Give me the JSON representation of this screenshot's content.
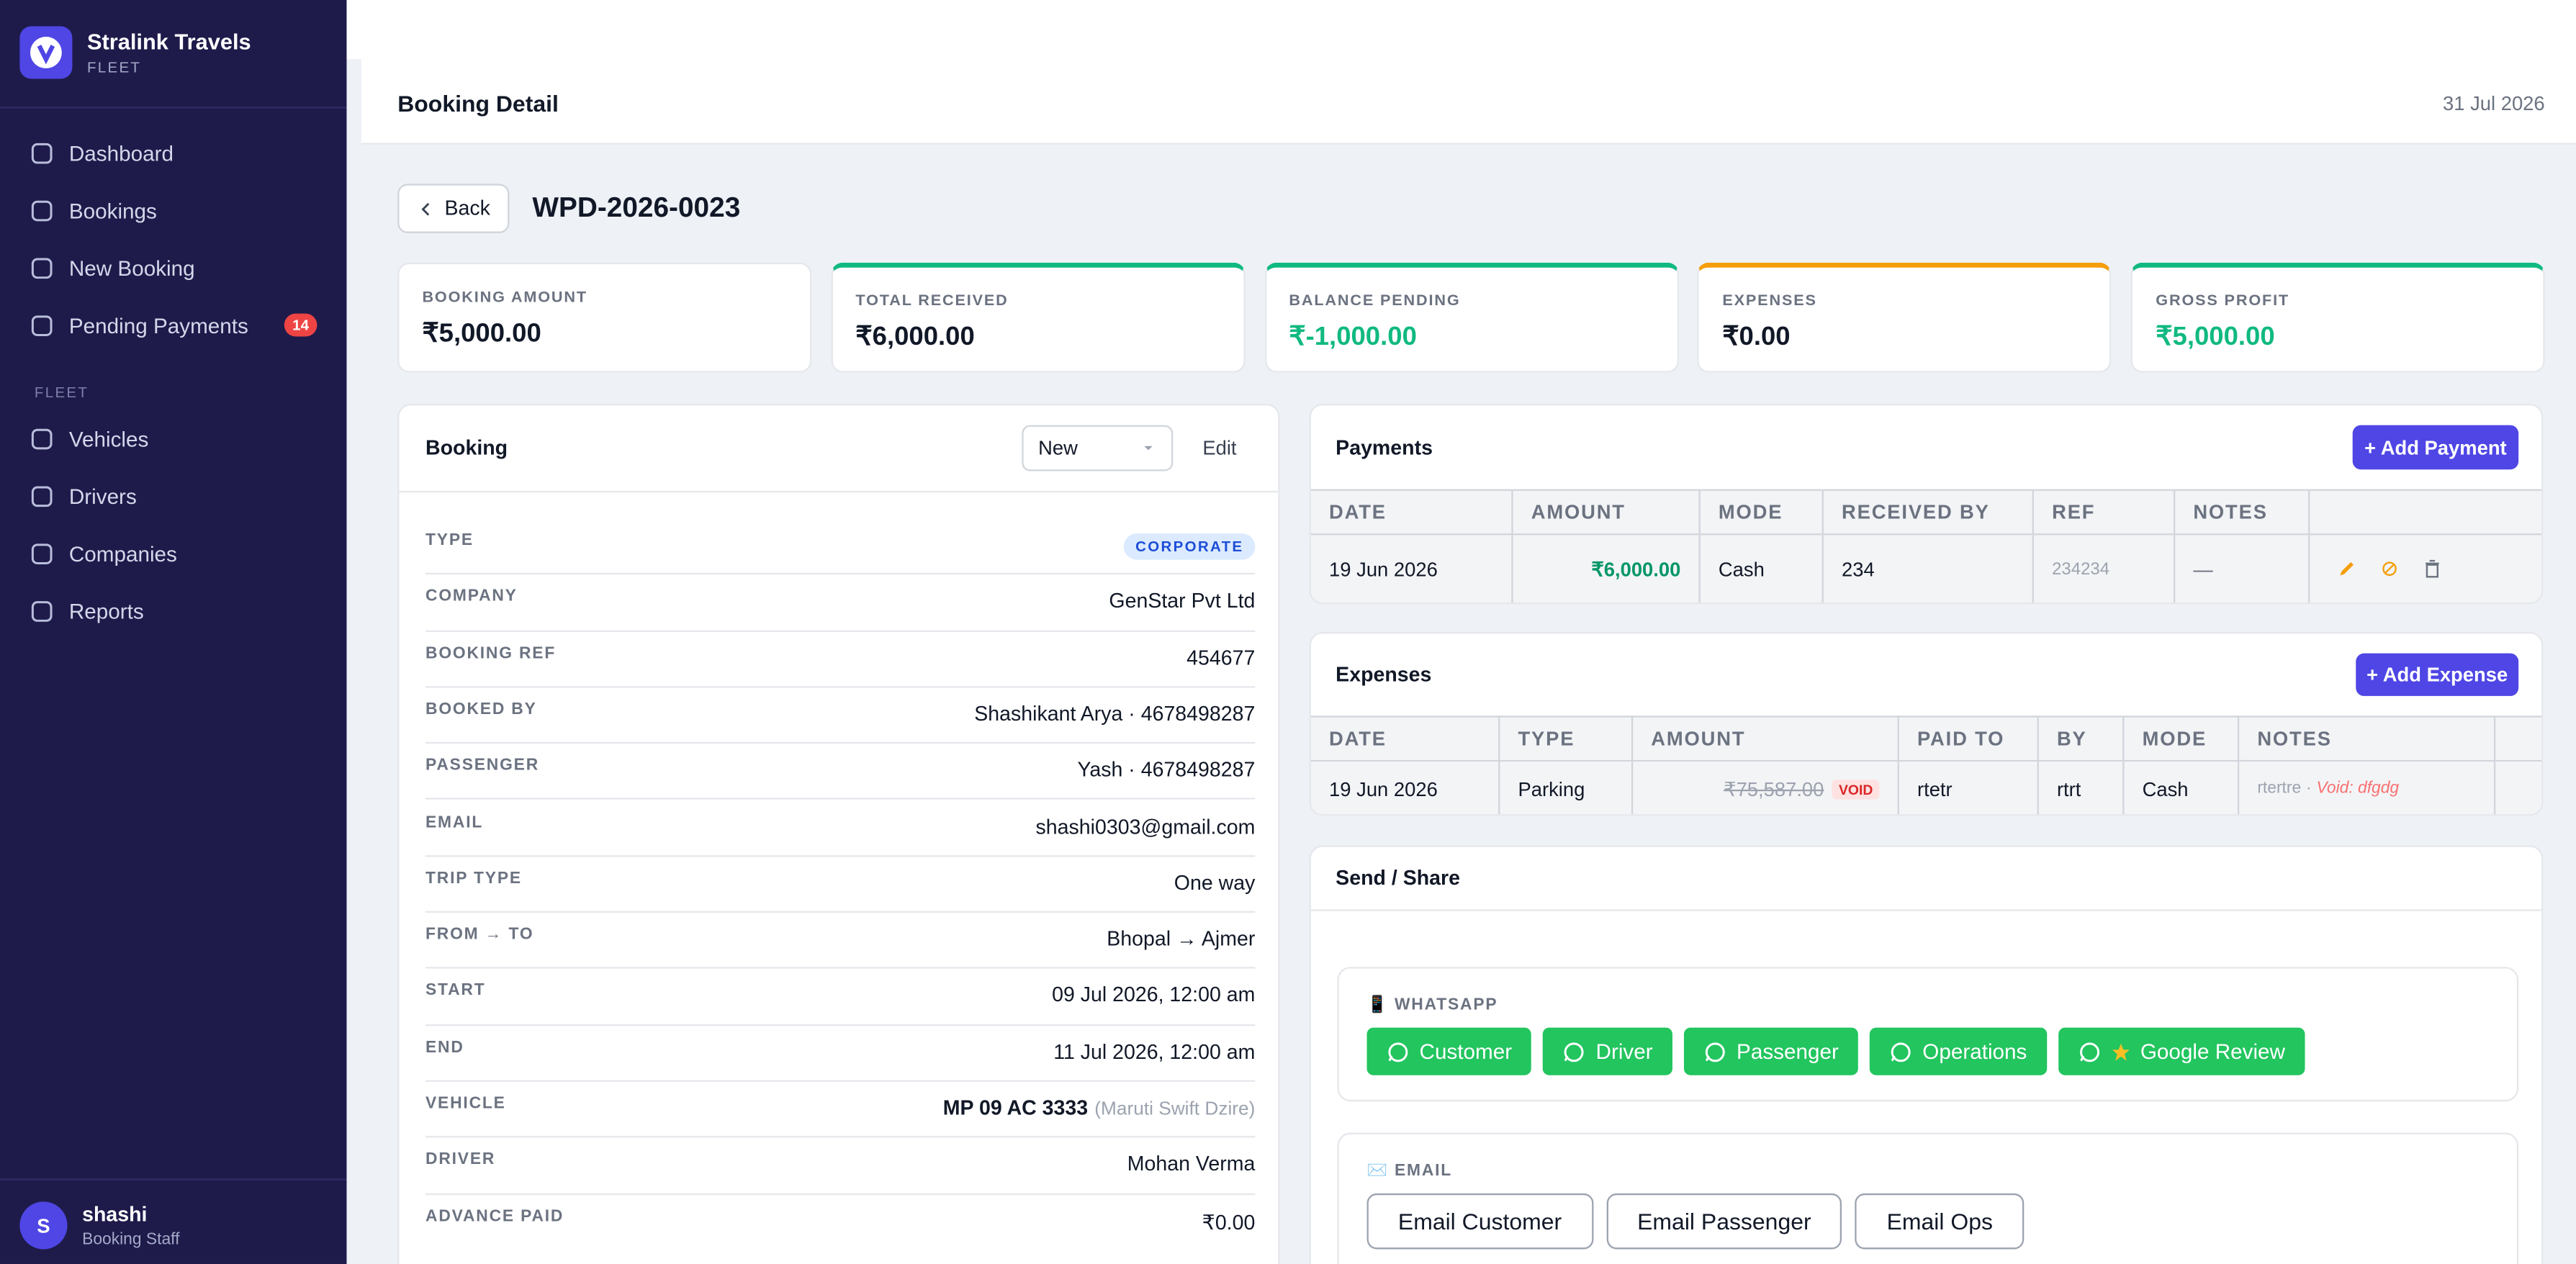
{
  "sidebar": {
    "brand": {
      "name": "Stralink Travels",
      "sub": "FLEET"
    },
    "nav": [
      {
        "label": "Dashboard"
      },
      {
        "label": "Bookings"
      },
      {
        "label": "New Booking"
      },
      {
        "label": "Pending Payments",
        "badge": "14"
      }
    ],
    "section": "FLEET",
    "fleet_nav": [
      {
        "label": "Vehicles"
      },
      {
        "label": "Drivers"
      },
      {
        "label": "Companies"
      },
      {
        "label": "Reports"
      }
    ],
    "user": {
      "avatar": "S",
      "name": "shashi",
      "role": "Booking Staff"
    }
  },
  "header": {
    "title": "Booking Detail",
    "date": "31 Jul 2026"
  },
  "toolbar": {
    "back": "Back",
    "booking_id": "WPD-2026-0023"
  },
  "stats": [
    {
      "label": "BOOKING AMOUNT",
      "value": "₹5,000.00",
      "value_color": "#111827"
    },
    {
      "label": "TOTAL RECEIVED",
      "value": "₹6,000.00",
      "accent": "#10b981",
      "value_color": "#111827"
    },
    {
      "label": "BALANCE PENDING",
      "value": "₹-1,000.00",
      "accent": "#10b981",
      "value_color": "#10b981"
    },
    {
      "label": "EXPENSES",
      "value": "₹0.00",
      "accent": "#f59e0b",
      "value_color": "#111827"
    },
    {
      "label": "GROSS PROFIT",
      "value": "₹5,000.00",
      "accent": "#10b981",
      "value_color": "#10b981"
    }
  ],
  "booking": {
    "title": "Booking",
    "status": "New",
    "edit": "Edit",
    "fields": [
      {
        "label": "TYPE",
        "badge": "CORPORATE"
      },
      {
        "label": "COMPANY",
        "value": "GenStar Pvt Ltd"
      },
      {
        "label": "BOOKING REF",
        "value": "454677"
      },
      {
        "label": "BOOKED BY",
        "value": "Shashikant Arya · 4678498287"
      },
      {
        "label": "PASSENGER",
        "value": "Yash · 4678498287"
      },
      {
        "label": "EMAIL",
        "value": "shashi0303@gmail.com"
      },
      {
        "label": "TRIP TYPE",
        "value": "One way"
      },
      {
        "label": "FROM → TO",
        "value": "Bhopal → Ajmer"
      },
      {
        "label": "START",
        "value": "09 Jul 2026, 12:00 am"
      },
      {
        "label": "END",
        "value": "11 Jul 2026, 12:00 am"
      },
      {
        "label": "VEHICLE",
        "value": "MP 09 AC 3333",
        "note": "(Maruti Swift Dzire)"
      },
      {
        "label": "DRIVER",
        "value": "Mohan Verma"
      },
      {
        "label": "ADVANCE PAID",
        "value": "₹0.00"
      }
    ]
  },
  "payments": {
    "title": "Payments",
    "button": "+ Add Payment",
    "columns": [
      "DATE",
      "AMOUNT",
      "MODE",
      "RECEIVED BY",
      "REF",
      "NOTES"
    ],
    "rows": [
      [
        "19 Jun 2026",
        "₹6,000.00",
        "Cash",
        "234",
        "234234",
        "—"
      ]
    ]
  },
  "expenses": {
    "title": "Expenses",
    "button": "+ Add Expense",
    "columns": [
      "DATE",
      "TYPE",
      "AMOUNT",
      "PAID TO",
      "BY",
      "MODE",
      "NOTES"
    ],
    "rows": [
      {
        "date": "19 Jun 2026",
        "type": "Parking",
        "amount": "₹75,587.00",
        "status": "VOID",
        "paid_to": "rtetr",
        "by": "rtrt",
        "mode": "Cash",
        "notes": "rtertre",
        "void_note": "Void: dfgdg"
      }
    ]
  },
  "share": {
    "title": "Send / Share",
    "whatsapp": {
      "label": "📱 WHATSAPP",
      "buttons": [
        "Customer",
        "Driver",
        "Passenger",
        "Operations",
        "Google Review"
      ]
    },
    "email": {
      "label": "✉️ EMAIL",
      "buttons": [
        "Email Customer",
        "Email Passenger",
        "Email Ops"
      ]
    }
  }
}
